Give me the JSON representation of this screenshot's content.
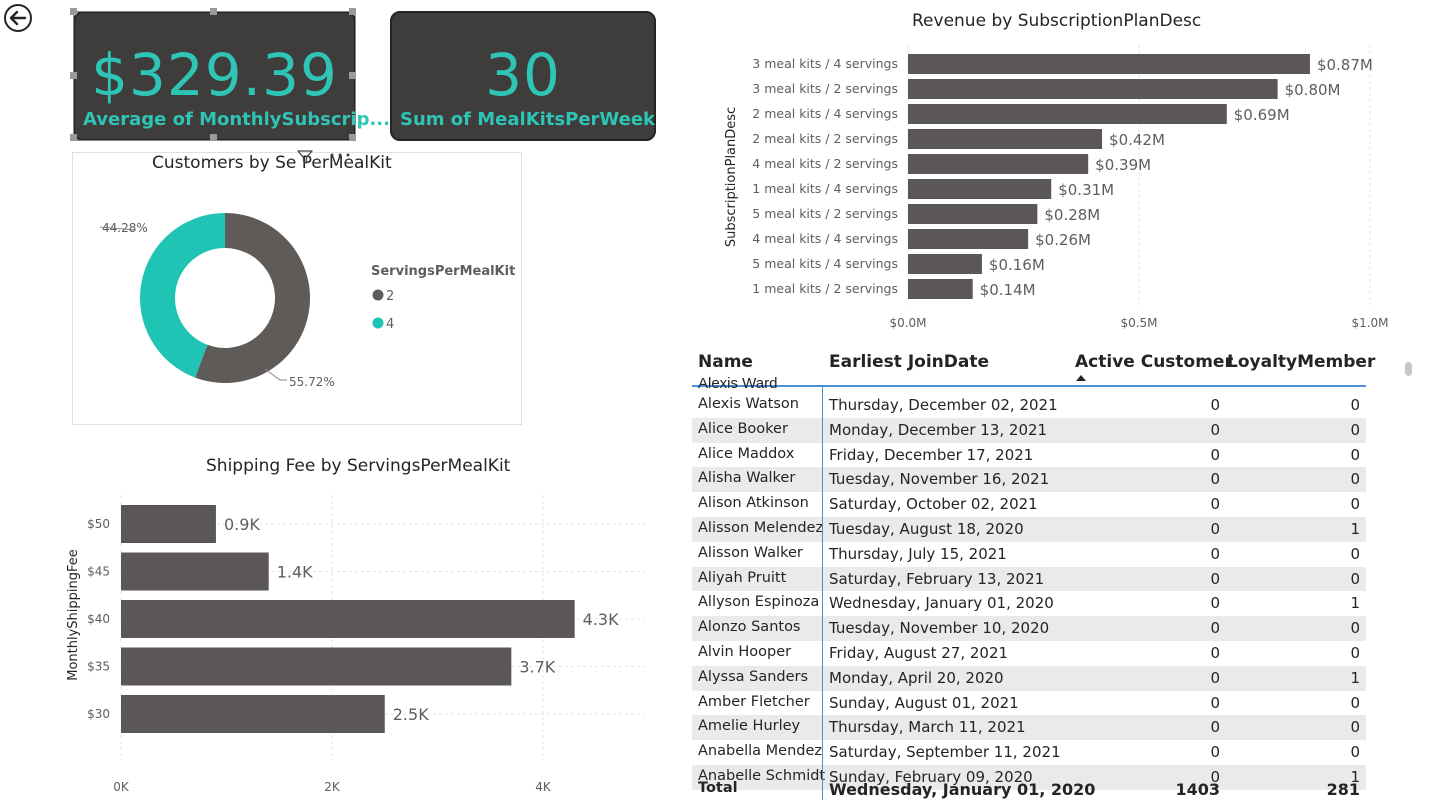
{
  "nav": {
    "back_icon": "arrow-left-circle-icon"
  },
  "kpis": [
    {
      "value": "$329.39",
      "label": "Average of MonthlySubscrip..."
    },
    {
      "value": "30",
      "label": "Sum of MealKitsPerWeek"
    }
  ],
  "donut": {
    "title": "Customers by Se   PerMealKit",
    "legend_title": "ServingsPerMealKit",
    "legend_items": [
      {
        "label": "2",
        "color": "#5f5b58"
      },
      {
        "label": "4",
        "color": "#20c4b4"
      }
    ],
    "slice_labels": [
      "55.72%",
      "44.28%"
    ]
  },
  "shipping": {
    "title": "Shipping Fee by ServingsPerMealKit",
    "ylabel": "MonthlyShippingFee",
    "yticks": [
      "$50",
      "$45",
      "$40",
      "$35",
      "$30"
    ],
    "xticks": [
      "0K",
      "2K",
      "4K"
    ],
    "bar_labels": [
      "0.9K",
      "1.4K",
      "4.3K",
      "3.7K",
      "2.5K"
    ]
  },
  "revenue": {
    "title": "Revenue by SubscriptionPlanDesc",
    "ylabel": "SubscriptionPlanDesc",
    "categories": [
      "3 meal kits / 4 servings",
      "3 meal kits / 2 servings",
      "2 meal kits / 4 servings",
      "2 meal kits / 2 servings",
      "4 meal kits / 2 servings",
      "1 meal kits / 4 servings",
      "5 meal kits / 2 servings",
      "4 meal kits / 4 servings",
      "5 meal kits / 4 servings",
      "1 meal kits / 2 servings"
    ],
    "value_labels": [
      "$0.87M",
      "$0.80M",
      "$0.69M",
      "$0.42M",
      "$0.39M",
      "$0.31M",
      "$0.28M",
      "$0.26M",
      "$0.16M",
      "$0.14M"
    ],
    "xticks": [
      "$0.0M",
      "$0.5M",
      "$1.0M"
    ]
  },
  "chart_data": [
    {
      "type": "pie",
      "title": "Customers by ServingsPerMealKit",
      "categories": [
        "2",
        "4"
      ],
      "values": [
        55.72,
        44.28
      ],
      "legend_title": "ServingsPerMealKit"
    },
    {
      "type": "bar",
      "title": "Shipping Fee by ServingsPerMealKit",
      "orientation": "horizontal",
      "categories": [
        "$50",
        "$45",
        "$40",
        "$35",
        "$30"
      ],
      "values": [
        900,
        1400,
        4300,
        3700,
        2500
      ],
      "ylabel": "MonthlyShippingFee",
      "xlim": [
        0,
        5000
      ]
    },
    {
      "type": "bar",
      "title": "Revenue by SubscriptionPlanDesc",
      "orientation": "horizontal",
      "categories": [
        "3 meal kits / 4 servings",
        "3 meal kits / 2 servings",
        "2 meal kits / 4 servings",
        "2 meal kits / 2 servings",
        "4 meal kits / 2 servings",
        "1 meal kits / 4 servings",
        "5 meal kits / 2 servings",
        "4 meal kits / 4 servings",
        "5 meal kits / 4 servings",
        "1 meal kits / 2 servings"
      ],
      "values": [
        0.87,
        0.8,
        0.69,
        0.42,
        0.39,
        0.31,
        0.28,
        0.26,
        0.16,
        0.14
      ],
      "ylabel": "SubscriptionPlanDesc",
      "xlim": [
        0,
        1.0
      ]
    }
  ],
  "table": {
    "headers": [
      "Name",
      "Earliest JoinDate",
      "Active Customer",
      "LoyaltyMember"
    ],
    "rows": [
      [
        "Alexis Watson",
        "Thursday, December 02, 2021",
        "0",
        "0"
      ],
      [
        "Alice Booker",
        "Monday, December 13, 2021",
        "0",
        "0"
      ],
      [
        "Alice Maddox",
        "Friday, December 17, 2021",
        "0",
        "0"
      ],
      [
        "Alisha Walker",
        "Tuesday, November 16, 2021",
        "0",
        "0"
      ],
      [
        "Alison Atkinson",
        "Saturday, October 02, 2021",
        "0",
        "0"
      ],
      [
        "Alisson Melendez",
        "Tuesday, August 18, 2020",
        "0",
        "1"
      ],
      [
        "Alisson Walker",
        "Thursday, July 15, 2021",
        "0",
        "0"
      ],
      [
        "Aliyah Pruitt",
        "Saturday, February 13, 2021",
        "0",
        "0"
      ],
      [
        "Allyson Espinoza",
        "Wednesday, January 01, 2020",
        "0",
        "1"
      ],
      [
        "Alonzo Santos",
        "Tuesday, November 10, 2020",
        "0",
        "0"
      ],
      [
        "Alvin Hooper",
        "Friday, August 27, 2021",
        "0",
        "0"
      ],
      [
        "Alyssa Sanders",
        "Monday, April 20, 2020",
        "0",
        "1"
      ],
      [
        "Amber Fletcher",
        "Sunday, August 01, 2021",
        "0",
        "0"
      ],
      [
        "Amelie Hurley",
        "Thursday, March 11, 2021",
        "0",
        "0"
      ],
      [
        "Anabella Mendez",
        "Saturday, September 11, 2021",
        "0",
        "0"
      ],
      [
        "Anabelle Schmidt",
        "Sunday, February 09, 2020",
        "0",
        "1"
      ]
    ],
    "total": [
      "Total",
      "Wednesday, January 01, 2020",
      "1403",
      "281"
    ]
  }
}
